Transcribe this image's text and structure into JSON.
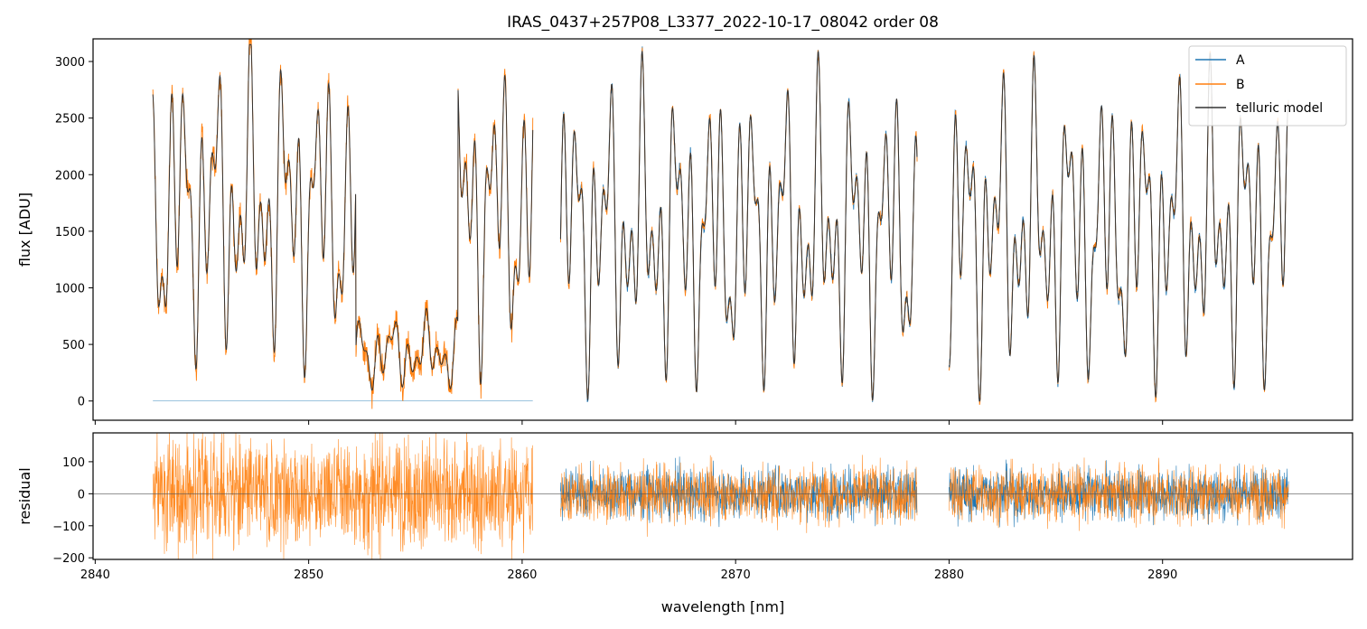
{
  "title": "IRAS_0437+257P08_L3377_2022-10-17_08042  order 08",
  "chart_data": [
    {
      "type": "line",
      "panel": "flux",
      "title": "IRAS_0437+257P08_L3377_2022-10-17_08042  order 08",
      "xlabel": "",
      "ylabel": "flux [ADU]",
      "xlim": [
        2839.9,
        2898.9
      ],
      "ylim": [
        -170,
        3200
      ],
      "xticks": [
        2840,
        2850,
        2860,
        2870,
        2880,
        2890
      ],
      "yticks": [
        0,
        500,
        1000,
        1500,
        2000,
        2500,
        3000
      ],
      "yticklabels": [
        "0",
        "500",
        "1000",
        "1500",
        "2000",
        "2500",
        "3000"
      ],
      "grid": false,
      "legend": {
        "placement": "top-right",
        "entries": [
          "A",
          "B",
          "telluric model"
        ]
      },
      "series": [
        {
          "name": "A",
          "color": "#1f77b4",
          "segments": [
            [
              2842.7,
              2860.5
            ],
            [
              2861.8,
              2878.5
            ],
            [
              2880.0,
              2895.9
            ]
          ]
        },
        {
          "name": "B",
          "color": "#ff7f0e",
          "segments": [
            [
              2842.7,
              2860.5
            ],
            [
              2861.8,
              2878.5
            ],
            [
              2880.0,
              2895.9
            ]
          ]
        },
        {
          "name": "telluric model",
          "color": "#333333",
          "segments": [
            [
              2842.7,
              2860.5
            ],
            [
              2861.8,
              2878.5
            ],
            [
              2880.0,
              2895.9
            ]
          ]
        }
      ]
    },
    {
      "type": "line",
      "panel": "residual",
      "xlabel": "wavelength [nm]",
      "ylabel": "residual",
      "xlim": [
        2839.9,
        2898.9
      ],
      "ylim": [
        -205,
        190
      ],
      "xticks": [
        2840,
        2850,
        2860,
        2870,
        2880,
        2890
      ],
      "xticklabels": [
        "2840",
        "2850",
        "2860",
        "2870",
        "2880",
        "2890"
      ],
      "yticks": [
        -200,
        -100,
        0,
        100
      ],
      "yticklabels": [
        "−200",
        "−100",
        "0",
        "100"
      ],
      "grid": false,
      "reference_line": 0,
      "series": [
        {
          "name": "A",
          "color": "#1f77b4"
        },
        {
          "name": "B",
          "color": "#ff7f0e"
        }
      ]
    }
  ]
}
